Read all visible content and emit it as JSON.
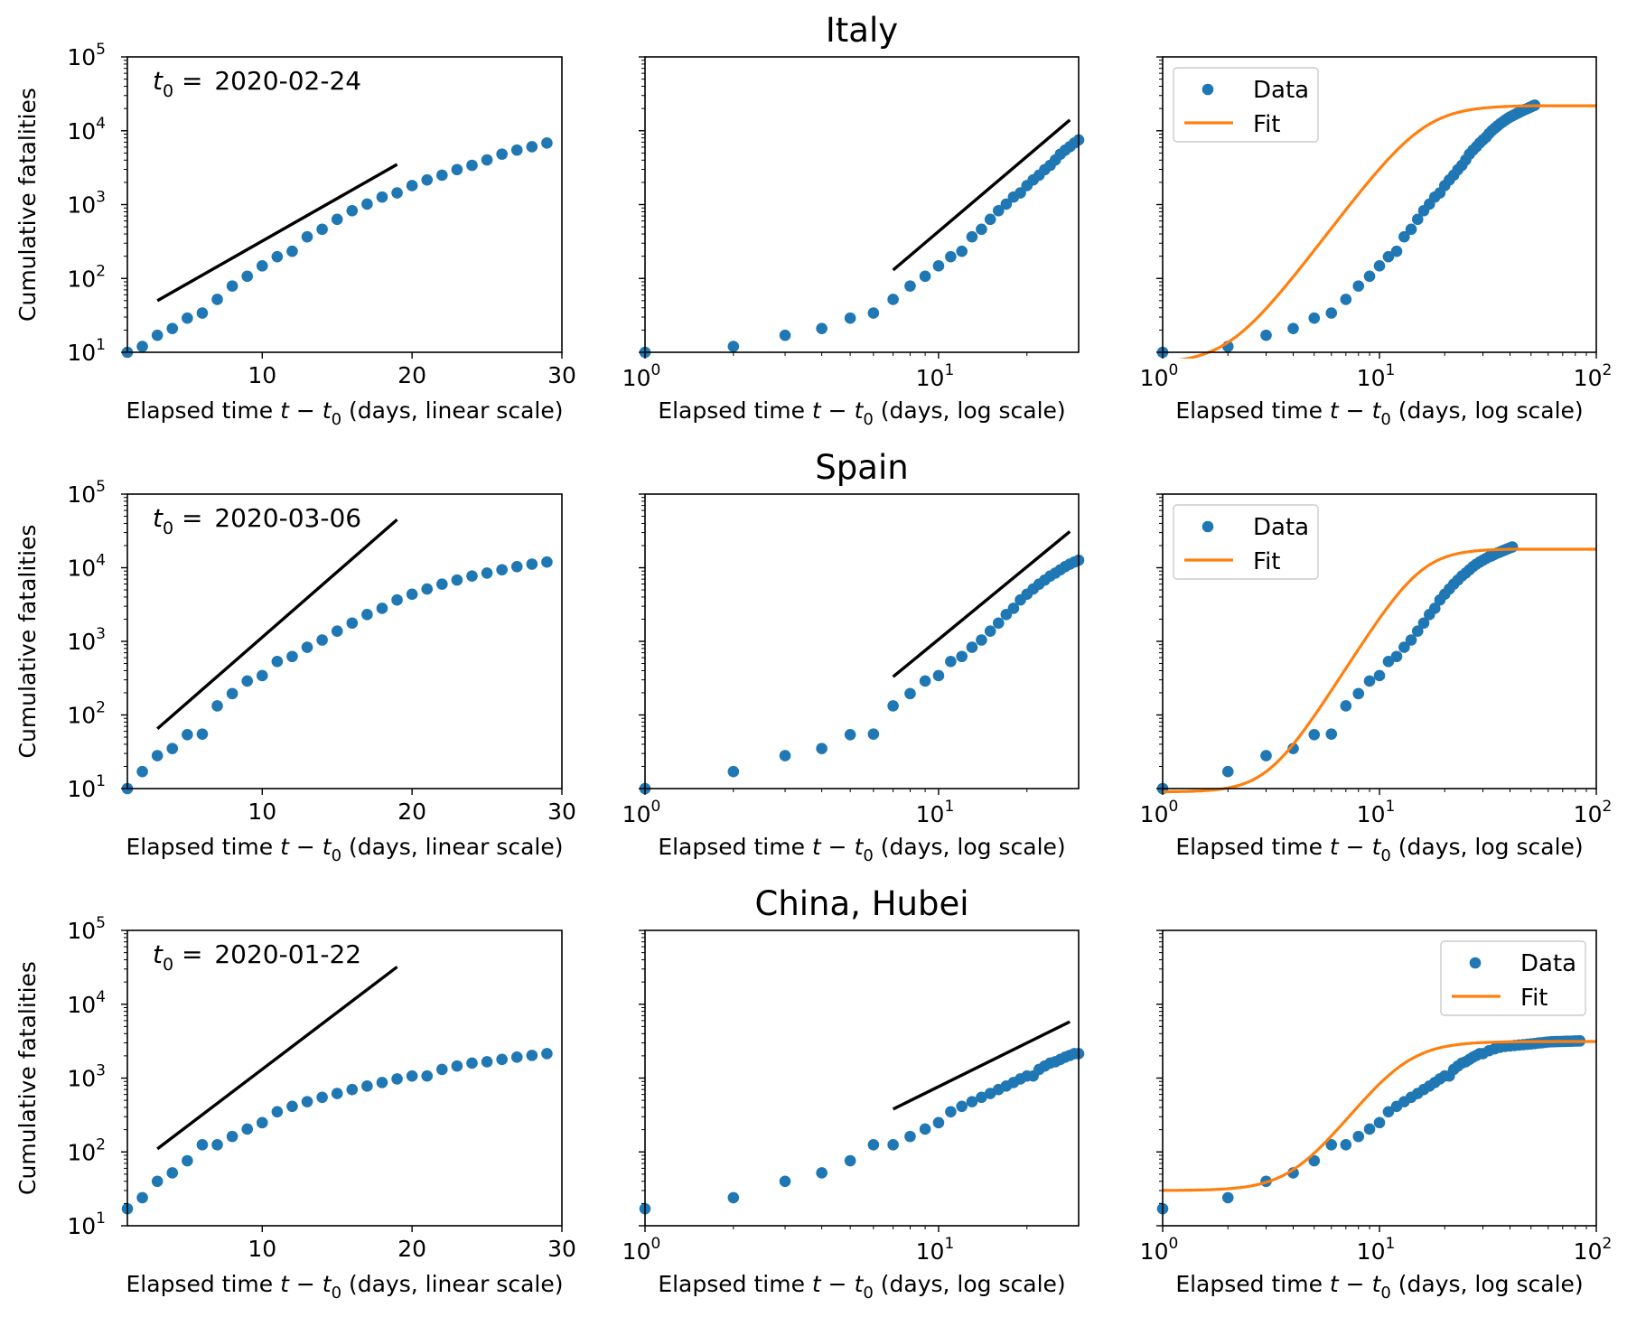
{
  "figure": {
    "ylabel": "Cumulative fatalities",
    "xlabels": {
      "linear": "(days, linear scale)",
      "log": "(days, log scale)",
      "prefix": "Elapsed time ",
      "expr_t": "t",
      "expr_minus": " − ",
      "expr_t0": "t",
      "expr_sub": "0"
    },
    "legend": {
      "data": "Data",
      "fit": "Fit"
    },
    "t0_prefix": "t",
    "t0_sub": "0",
    "t0_eq": " = ",
    "colors": {
      "data": "#1f77b4",
      "fit": "#ff7f0e",
      "reference": "#000000"
    }
  },
  "chart_data": [
    {
      "region": "Italy",
      "title": "Italy",
      "t0": "2020-02-24",
      "type": "scatter",
      "x": [
        1,
        2,
        3,
        4,
        5,
        6,
        7,
        8,
        9,
        10,
        11,
        12,
        13,
        14,
        15,
        16,
        17,
        18,
        19,
        20,
        21,
        22,
        23,
        24,
        25,
        26,
        27,
        28,
        29,
        30,
        31,
        32,
        33,
        34,
        35,
        36,
        37,
        38,
        39,
        40,
        41,
        42,
        43,
        44,
        45,
        46,
        47,
        48,
        49,
        50,
        51,
        52
      ],
      "y": [
        10,
        12,
        17,
        21,
        29,
        34,
        52,
        79,
        107,
        148,
        197,
        233,
        366,
        463,
        631,
        827,
        1016,
        1266,
        1441,
        1809,
        2158,
        2503,
        2978,
        3405,
        4032,
        4825,
        5476,
        6077,
        6820,
        7503,
        8165,
        9134,
        10023,
        10779,
        11591,
        12428,
        13155,
        13915,
        14681,
        15362,
        15887,
        16523,
        17127,
        17669,
        18279,
        18849,
        19468,
        19899,
        20465,
        21067,
        21645,
        22170
      ],
      "linear_panel": {
        "xlim": [
          1,
          30
        ],
        "ylim": [
          10,
          100000
        ],
        "xticks": [
          10,
          20,
          30
        ],
        "reference_line": {
          "x": [
            3,
            19
          ],
          "y": [
            50,
            3500
          ]
        },
        "shown_days": 29
      },
      "log_panel": {
        "xlim": [
          1,
          30
        ],
        "ylim": [
          10,
          100000
        ],
        "xtick_exponents": [
          0,
          1
        ],
        "reference_line": {
          "x": [
            7,
            28
          ],
          "y": [
            130,
            14000
          ]
        }
      },
      "fit_panel": {
        "xlim": [
          1,
          100
        ],
        "ylim": [
          10,
          100000
        ],
        "xtick_exponents": [
          0,
          1,
          2
        ],
        "legend": "top-left",
        "fit_params": {
          "K": 22000,
          "alpha": 3.9,
          "tm": 16,
          "floor": 7
        }
      }
    },
    {
      "region": "Spain",
      "title": "Spain",
      "t0": "2020-03-06",
      "type": "scatter",
      "x": [
        1,
        2,
        3,
        4,
        5,
        6,
        7,
        8,
        9,
        10,
        11,
        12,
        13,
        14,
        15,
        16,
        17,
        18,
        19,
        20,
        21,
        22,
        23,
        24,
        25,
        26,
        27,
        28,
        29,
        30,
        31,
        32,
        33,
        34,
        35,
        36,
        37,
        38,
        39,
        40,
        41
      ],
      "y": [
        10,
        17,
        28,
        35,
        54,
        55,
        133,
        195,
        289,
        342,
        533,
        623,
        830,
        1043,
        1375,
        1772,
        2311,
        2808,
        3647,
        4365,
        5138,
        5982,
        6803,
        7716,
        8464,
        9387,
        10348,
        11198,
        11947,
        12641,
        13341,
        14045,
        14555,
        15238,
        15843,
        16353,
        16972,
        17489,
        18056,
        18579,
        19130
      ],
      "linear_panel": {
        "xlim": [
          1,
          30
        ],
        "ylim": [
          10,
          100000
        ],
        "xticks": [
          10,
          20,
          30
        ],
        "reference_line": {
          "x": [
            3,
            19
          ],
          "y": [
            65,
            45000
          ]
        },
        "shown_days": 29
      },
      "log_panel": {
        "xlim": [
          1,
          30
        ],
        "ylim": [
          10,
          100000
        ],
        "xtick_exponents": [
          0,
          1
        ],
        "reference_line": {
          "x": [
            7,
            28
          ],
          "y": [
            330,
            31000
          ]
        }
      },
      "fit_panel": {
        "xlim": [
          1,
          100
        ],
        "ylim": [
          10,
          100000
        ],
        "xtick_exponents": [
          0,
          1,
          2
        ],
        "legend": "top-left",
        "fit_params": {
          "K": 18000,
          "alpha": 4.7,
          "tm": 15.5,
          "floor": 9
        }
      }
    },
    {
      "region": "China, Hubei",
      "title": "China, Hubei",
      "t0": "2020-01-22",
      "type": "scatter",
      "x": [
        1,
        2,
        3,
        4,
        5,
        6,
        7,
        8,
        9,
        10,
        11,
        12,
        13,
        14,
        15,
        16,
        17,
        18,
        19,
        20,
        21,
        22,
        23,
        24,
        25,
        26,
        27,
        28,
        29,
        30,
        32,
        34,
        36,
        38,
        40,
        42,
        44,
        46,
        48,
        50,
        52,
        54,
        56,
        58,
        60,
        62,
        64,
        66,
        68,
        70,
        72,
        74,
        76,
        78,
        80,
        82,
        84
      ],
      "y": [
        17,
        24,
        40,
        52,
        76,
        125,
        125,
        162,
        204,
        249,
        350,
        414,
        479,
        549,
        618,
        699,
        780,
        871,
        974,
        1068,
        1068,
        1310,
        1457,
        1596,
        1662,
        1789,
        1921,
        2029,
        2144,
        2144,
        2346,
        2495,
        2615,
        2682,
        2727,
        2761,
        2803,
        2835,
        2871,
        2902,
        2931,
        2986,
        3008,
        3046,
        3085,
        3099,
        3111,
        3122,
        3130,
        3139,
        3144,
        3153,
        3160,
        3169,
        3177,
        3182,
        3186
      ],
      "linear_panel": {
        "xlim": [
          1,
          30
        ],
        "ylim": [
          10,
          100000
        ],
        "xticks": [
          10,
          20,
          30
        ],
        "reference_line": {
          "x": [
            3,
            19
          ],
          "y": [
            110,
            32000
          ]
        },
        "shown_days": 29
      },
      "log_panel": {
        "xlim": [
          1,
          30
        ],
        "ylim": [
          10,
          100000
        ],
        "xtick_exponents": [
          0,
          1
        ],
        "reference_line": {
          "x": [
            7,
            28
          ],
          "y": [
            380,
            5800
          ]
        }
      },
      "fit_panel": {
        "xlim": [
          1,
          100
        ],
        "ylim": [
          10,
          100000
        ],
        "xtick_exponents": [
          0,
          1,
          2
        ],
        "legend": "top-right",
        "fit_params": {
          "K": 3100,
          "alpha": 4.0,
          "tm": 13,
          "floor": 30
        }
      }
    }
  ]
}
